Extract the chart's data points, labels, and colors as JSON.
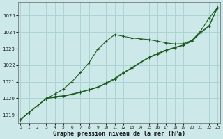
{
  "xlabel": "Graphe pression niveau de la mer (hPa)",
  "bg_color": "#cce8e8",
  "grid_color": "#aad4d4",
  "line_color": "#1a5c1a",
  "ylim": [
    1018.5,
    1025.8
  ],
  "xlim": [
    -0.3,
    23.3
  ],
  "yticks": [
    1019,
    1020,
    1021,
    1022,
    1023,
    1024,
    1025
  ],
  "xticks": [
    0,
    1,
    2,
    3,
    4,
    5,
    6,
    7,
    8,
    9,
    10,
    11,
    12,
    13,
    14,
    15,
    16,
    17,
    18,
    19,
    20,
    21,
    22,
    23
  ],
  "series1": {
    "x": [
      0,
      1,
      2,
      3,
      4,
      5,
      6,
      7,
      8,
      9,
      10,
      11,
      12,
      13,
      14,
      15,
      16,
      17,
      18,
      19,
      20,
      21,
      22,
      23
    ],
    "y": [
      1018.7,
      1019.15,
      1019.55,
      1019.98,
      1020.1,
      1020.15,
      1020.25,
      1020.38,
      1020.52,
      1020.68,
      1020.92,
      1021.2,
      1021.55,
      1021.85,
      1022.18,
      1022.48,
      1022.72,
      1022.92,
      1023.08,
      1023.22,
      1023.48,
      1023.98,
      1024.38,
      1025.5
    ]
  },
  "series2": {
    "x": [
      0,
      1,
      2,
      3,
      4,
      5,
      6,
      7,
      8,
      9,
      10,
      11,
      12,
      13,
      14,
      15,
      16,
      17,
      18,
      19,
      20,
      21,
      22,
      23
    ],
    "y": [
      1018.7,
      1019.15,
      1019.55,
      1019.98,
      1020.25,
      1020.55,
      1021.0,
      1021.55,
      1022.15,
      1022.95,
      1023.45,
      1023.85,
      1023.75,
      1023.65,
      1023.6,
      1023.55,
      1023.45,
      1023.35,
      1023.28,
      1023.3,
      1023.5,
      1024.05,
      1024.85,
      1025.5
    ]
  },
  "series3": {
    "x": [
      0,
      1,
      2,
      3,
      4,
      5,
      6,
      7,
      8,
      9,
      10,
      11,
      12,
      13,
      14,
      15,
      16,
      17,
      18,
      19,
      20,
      21,
      22,
      23
    ],
    "y": [
      1018.7,
      1019.15,
      1019.55,
      1019.98,
      1020.05,
      1020.12,
      1020.22,
      1020.35,
      1020.5,
      1020.65,
      1020.88,
      1021.15,
      1021.52,
      1021.82,
      1022.15,
      1022.45,
      1022.68,
      1022.88,
      1023.05,
      1023.2,
      1023.45,
      1023.95,
      1024.35,
      1025.5
    ]
  }
}
